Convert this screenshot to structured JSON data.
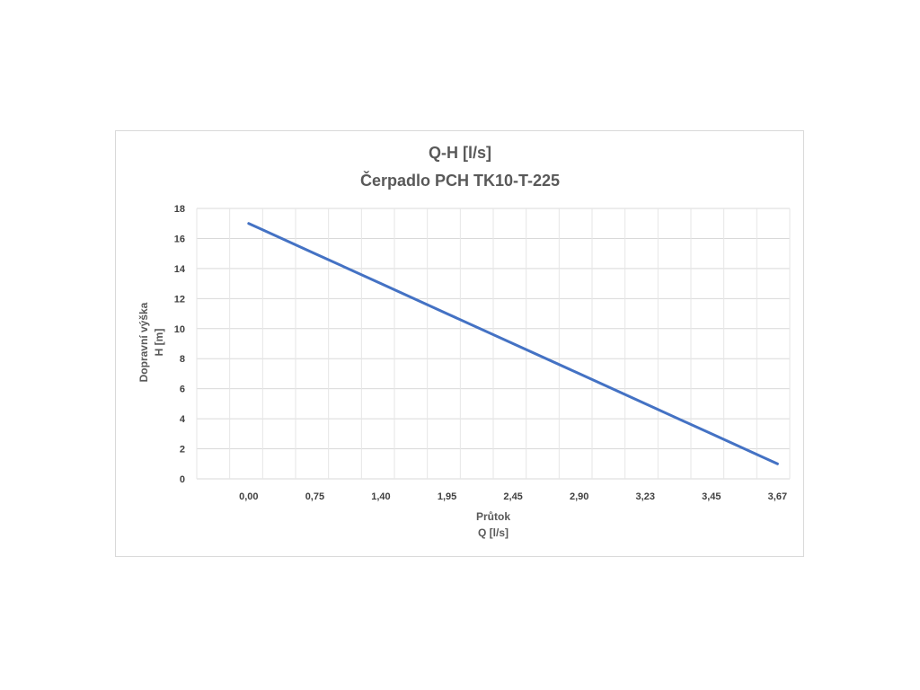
{
  "chart_data": {
    "type": "line",
    "title": [
      "Q-H  [l/s]",
      "Čerpadlo PCH TK10-T-225"
    ],
    "xlabel": [
      "Průtok",
      "Q [l/s]"
    ],
    "ylabel": [
      "Dopravní výška",
      "H [m]"
    ],
    "categories": [
      "0,00",
      "0,75",
      "1,40",
      "1,95",
      "2,45",
      "2,90",
      "3,23",
      "3,45",
      "3,67"
    ],
    "series": [
      {
        "values": [
          17,
          15,
          13,
          11,
          9,
          7,
          5,
          3,
          1
        ],
        "color": "#4472c4"
      }
    ],
    "ylim": [
      0,
      18
    ],
    "yticks": [
      "0",
      "2",
      "4",
      "6",
      "8",
      "10",
      "12",
      "14",
      "16",
      "18"
    ],
    "grid": true,
    "legend": "none"
  }
}
